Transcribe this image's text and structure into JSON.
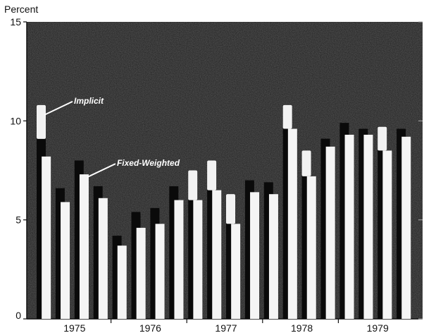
{
  "chart_data": {
    "type": "bar",
    "title": "",
    "ylabel": "Percent",
    "xlabel": "",
    "ylim": [
      0,
      15
    ],
    "yticks": [
      0,
      5,
      10,
      15
    ],
    "years": [
      "1975",
      "1976",
      "1977",
      "1978",
      "1979"
    ],
    "quarters_per_year": 4,
    "series": [
      {
        "name": "Implicit",
        "values": [
          10.8,
          6.6,
          8.0,
          6.7,
          4.2,
          5.4,
          5.6,
          6.7,
          7.5,
          8.0,
          6.3,
          7.0,
          6.9,
          10.8,
          8.5,
          9.1,
          9.9,
          9.6,
          9.7,
          9.6
        ]
      },
      {
        "name": "Fixed-Weighted",
        "values": [
          8.2,
          5.9,
          7.3,
          6.1,
          3.7,
          4.6,
          4.8,
          6.0,
          6.0,
          6.5,
          4.8,
          6.4,
          6.3,
          9.6,
          7.2,
          8.7,
          9.3,
          9.3,
          8.5,
          9.2
        ]
      }
    ],
    "annotations": [
      {
        "text": "Implicit",
        "series": "Implicit",
        "quarter_index": 0
      },
      {
        "text": "Fixed-Weighted",
        "series": "Fixed-Weighted",
        "quarter_index": 2
      }
    ],
    "colors": {
      "background": "#1e1e1e",
      "implicit": "#0a0a0a",
      "fixed_weighted": "#f5f5f5",
      "implicit_highlight": "#f2f2f2"
    }
  }
}
